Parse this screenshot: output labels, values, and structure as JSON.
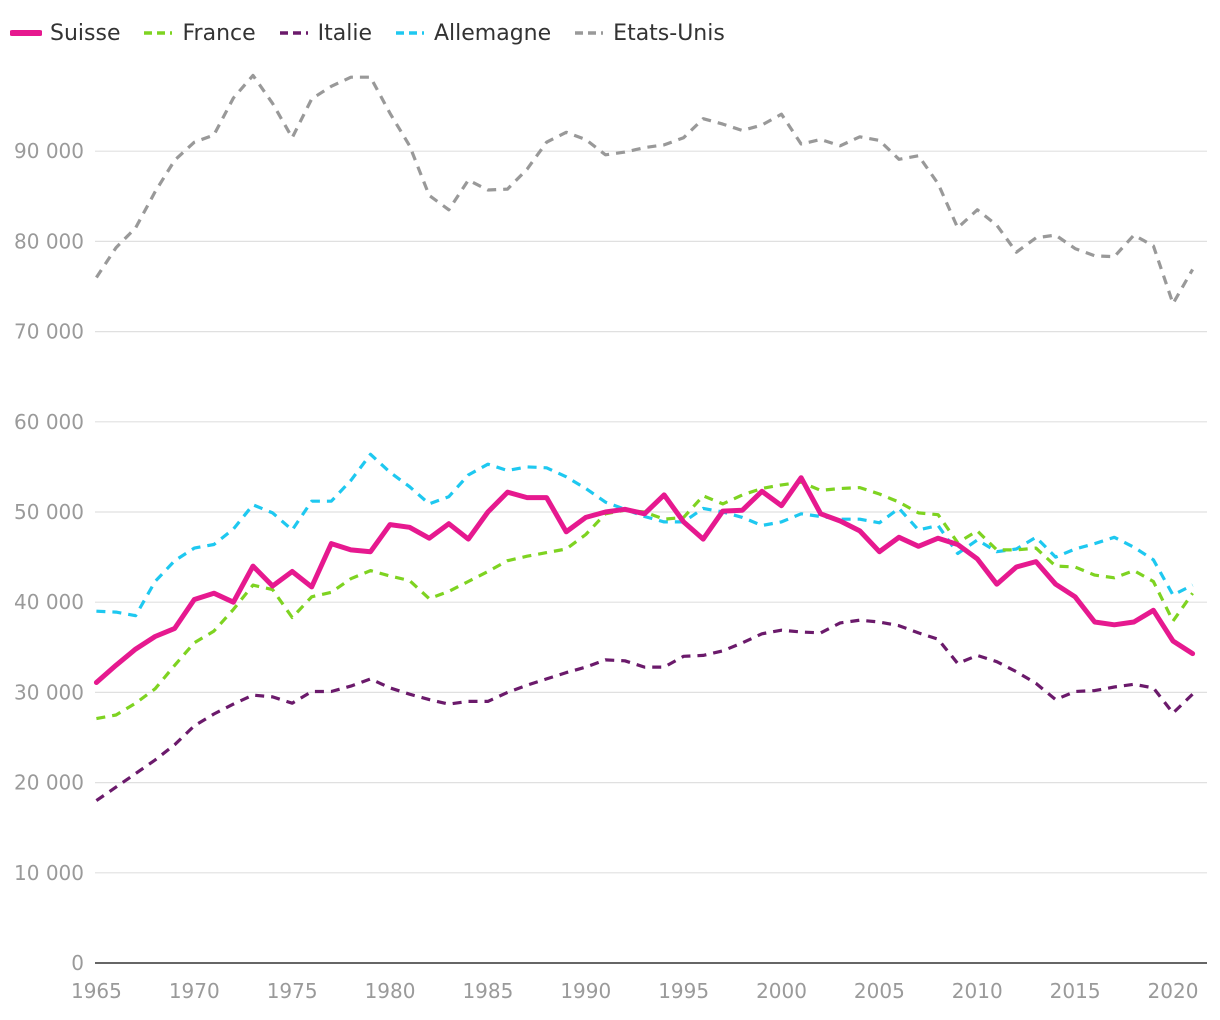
{
  "chart_data": {
    "type": "line",
    "title": "",
    "xlabel": "",
    "ylabel": "",
    "x": [
      1965,
      1966,
      1967,
      1968,
      1969,
      1970,
      1971,
      1972,
      1973,
      1974,
      1975,
      1976,
      1977,
      1978,
      1979,
      1980,
      1981,
      1982,
      1983,
      1984,
      1985,
      1986,
      1987,
      1988,
      1989,
      1990,
      1991,
      1992,
      1993,
      1994,
      1995,
      1996,
      1997,
      1998,
      1999,
      2000,
      2001,
      2002,
      2003,
      2004,
      2005,
      2006,
      2007,
      2008,
      2009,
      2010,
      2011,
      2012,
      2013,
      2014,
      2015,
      2016,
      2017,
      2018,
      2019,
      2020,
      2021
    ],
    "xlim": [
      1966,
      2020
    ],
    "ylim": [
      0,
      100000
    ],
    "y_ticks": [
      0,
      10000,
      20000,
      30000,
      40000,
      50000,
      60000,
      70000,
      80000,
      90000
    ],
    "y_tick_labels": [
      "0",
      "10 000",
      "20 000",
      "30 000",
      "40 000",
      "50 000",
      "60 000",
      "70 000",
      "80 000",
      "90 000"
    ],
    "x_ticks": [
      1965,
      1970,
      1975,
      1980,
      1985,
      1990,
      1995,
      2000,
      2005,
      2010,
      2015,
      2020
    ],
    "x_tick_labels": [
      "1965",
      "1970",
      "1975",
      "1980",
      "1985",
      "1990",
      "1995",
      "2000",
      "2005",
      "2010",
      "2015",
      "2020"
    ],
    "grid": "horizontal",
    "legend_position": "top-left",
    "series": [
      {
        "name": "Suisse",
        "color": "#e6198f",
        "dash": "solid",
        "values": [
          31100,
          33000,
          34800,
          36200,
          37100,
          40300,
          41000,
          40000,
          44000,
          41800,
          43400,
          41700,
          46500,
          45800,
          45600,
          48600,
          48300,
          47100,
          48700,
          47000,
          50000,
          52200,
          51600,
          51600,
          47800,
          49400,
          50000,
          50300,
          49800,
          51900,
          48900,
          47000,
          50100,
          50200,
          52300,
          50700,
          53800,
          49800,
          49000,
          47900,
          45600,
          47200,
          46200,
          47100,
          46400,
          44800,
          42000,
          43900,
          44500,
          42000,
          40600,
          37800,
          37500,
          37800,
          39100,
          35700,
          34300
        ]
      },
      {
        "name": "France",
        "color": "#7ed321",
        "dash": "dashed",
        "values": [
          27100,
          27500,
          28800,
          30400,
          33000,
          35500,
          36800,
          39200,
          41900,
          41400,
          38300,
          40600,
          41100,
          42600,
          43500,
          42900,
          42400,
          40400,
          41200,
          42300,
          43400,
          44600,
          45100,
          45500,
          45900,
          47500,
          49800,
          50200,
          50000,
          49200,
          49400,
          51800,
          50900,
          51900,
          52600,
          53000,
          53300,
          52400,
          52600,
          52700,
          52000,
          51100,
          49900,
          49700,
          46600,
          47900,
          45800,
          45800,
          46000,
          44000,
          43900,
          43000,
          42700,
          43500,
          42300,
          37900,
          41000
        ]
      },
      {
        "name": "Italie",
        "color": "#6b1a6b",
        "dash": "dashed",
        "values": [
          18000,
          19500,
          21000,
          22500,
          24200,
          26300,
          27600,
          28700,
          29700,
          29500,
          28800,
          30100,
          30100,
          30700,
          31500,
          30500,
          29800,
          29200,
          28700,
          29000,
          29000,
          30000,
          30800,
          31500,
          32200,
          32800,
          33600,
          33500,
          32800,
          32800,
          34000,
          34100,
          34600,
          35500,
          36500,
          36900,
          36700,
          36600,
          37700,
          38000,
          37800,
          37400,
          36600,
          35900,
          33200,
          34100,
          33400,
          32300,
          31000,
          29200,
          30100,
          30200,
          30600,
          30900,
          30500,
          27700,
          29800
        ]
      },
      {
        "name": "Allemagne",
        "color": "#1ec8f0",
        "dash": "dashed",
        "values": [
          39000,
          38900,
          38500,
          42300,
          44600,
          46000,
          46400,
          48100,
          50800,
          49900,
          48000,
          51200,
          51200,
          53500,
          56400,
          54400,
          52800,
          50900,
          51700,
          54100,
          55300,
          54600,
          55000,
          54900,
          53900,
          52600,
          51100,
          50300,
          49500,
          48900,
          48900,
          50400,
          50000,
          49400,
          48500,
          48900,
          49800,
          49500,
          49200,
          49200,
          48800,
          50400,
          48000,
          48500,
          45400,
          46900,
          45600,
          45900,
          47200,
          45000,
          45900,
          46500,
          47200,
          46100,
          44700,
          40800,
          41900
        ]
      },
      {
        "name": "Etats-Unis",
        "color": "#999999",
        "dash": "dashed",
        "values": [
          76000,
          79300,
          81500,
          85500,
          89000,
          91000,
          91800,
          95900,
          98400,
          95300,
          91500,
          95800,
          97200,
          98200,
          98200,
          94200,
          90600,
          85100,
          83500,
          86800,
          85700,
          85800,
          88000,
          91000,
          92100,
          91300,
          89600,
          89900,
          90400,
          90700,
          91500,
          93600,
          93000,
          92300,
          92900,
          94100,
          90800,
          91300,
          90600,
          91600,
          91200,
          89100,
          89500,
          86400,
          81500,
          83500,
          81800,
          78800,
          80400,
          80700,
          79200,
          78400,
          78300,
          80700,
          79500,
          73100,
          76900
        ]
      }
    ]
  }
}
